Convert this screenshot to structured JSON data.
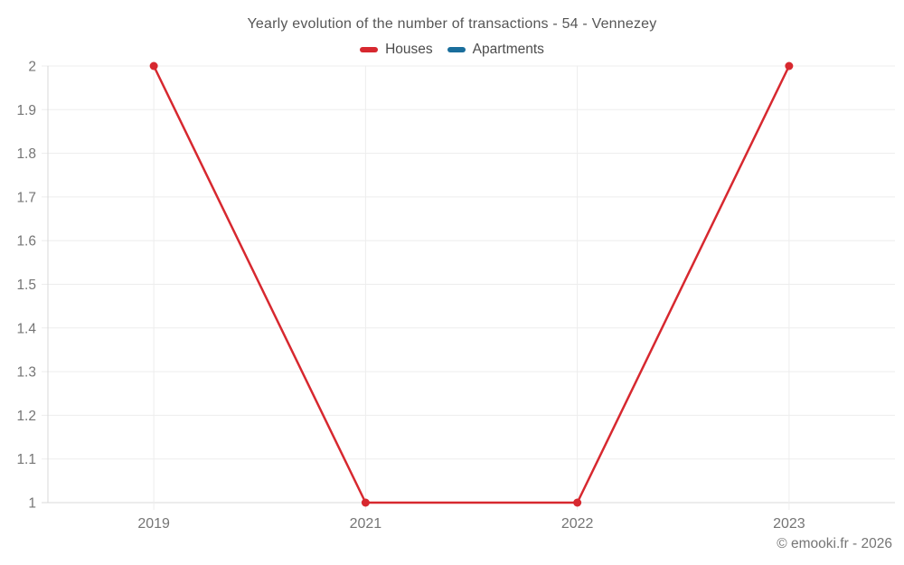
{
  "chart": {
    "title": "Yearly evolution of the number of transactions - 54 - Vennezey",
    "legend": [
      {
        "label": "Houses",
        "color": "#d7282f"
      },
      {
        "label": "Apartments",
        "color": "#1a6e9c"
      }
    ]
  },
  "chart_data": {
    "type": "line",
    "title": "Yearly evolution of the number of transactions - 54 - Vennezey",
    "categories": [
      "2019",
      "2021",
      "2022",
      "2023"
    ],
    "series": [
      {
        "name": "Houses",
        "color": "#d7282f",
        "values": [
          2,
          1,
          1,
          2
        ]
      },
      {
        "name": "Apartments",
        "color": "#1a6e9c",
        "values": []
      }
    ],
    "xlabel": "",
    "ylabel": "",
    "ylim": [
      1,
      2
    ],
    "ytick_step": 0.1,
    "yticks": [
      "1",
      "1.1",
      "1.2",
      "1.3",
      "1.4",
      "1.5",
      "1.6",
      "1.7",
      "1.8",
      "1.9",
      "2"
    ],
    "grid": true,
    "legend_position": "top"
  },
  "colors": {
    "axis_text": "#757575",
    "grid_line": "#ededed",
    "axis_line": "#d9d9d9"
  },
  "footer": {
    "copyright": "© emooki.fr - 2026"
  }
}
